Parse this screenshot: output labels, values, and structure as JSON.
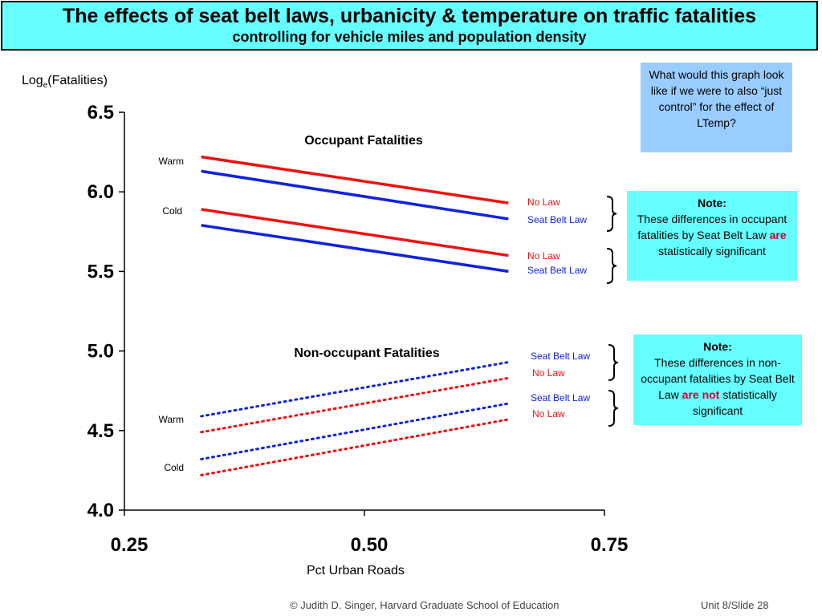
{
  "header": {
    "title": "The effects of seat belt laws, urbanicity & temperature on traffic fatalities",
    "subtitle": "controlling for vehicle miles and population density"
  },
  "axes": {
    "ylabel_base": "Log",
    "ylabel_sub": "e",
    "ylabel_rest": "(Fatalities)",
    "xlabel": "Pct Urban Roads"
  },
  "chart_data": {
    "type": "line",
    "xlabel": "Pct Urban Roads",
    "ylabel": "Loge(Fatalities)",
    "xlim": [
      0.25,
      0.75
    ],
    "ylim": [
      4.0,
      6.5
    ],
    "xticks": [
      "0.25",
      "0.50",
      "0.75"
    ],
    "yticks": [
      "4.0",
      "4.5",
      "5.0",
      "5.5",
      "6.0",
      "6.5"
    ],
    "groups": [
      {
        "title": "Occupant Fatalities",
        "side_labels": [
          "Warm",
          "Cold"
        ]
      },
      {
        "title": "Non-occupant Fatalities",
        "side_labels": [
          "Warm",
          "Cold"
        ]
      }
    ],
    "series": [
      {
        "name": "No Law",
        "group": "Occupant Fatalities",
        "temp": "Warm",
        "style": "solid",
        "color": "#ee1111",
        "x": [
          0.33,
          0.65
        ],
        "y": [
          6.22,
          5.93
        ],
        "label": "No Law"
      },
      {
        "name": "Seat Belt Law",
        "group": "Occupant Fatalities",
        "temp": "Warm",
        "style": "solid",
        "color": "#1122dd",
        "x": [
          0.33,
          0.65
        ],
        "y": [
          6.13,
          5.83
        ],
        "label": "Seat Belt Law"
      },
      {
        "name": "No Law",
        "group": "Occupant Fatalities",
        "temp": "Cold",
        "style": "solid",
        "color": "#ee1111",
        "x": [
          0.33,
          0.65
        ],
        "y": [
          5.89,
          5.6
        ],
        "label": "No Law"
      },
      {
        "name": "Seat Belt Law",
        "group": "Occupant Fatalities",
        "temp": "Cold",
        "style": "solid",
        "color": "#1122dd",
        "x": [
          0.33,
          0.65
        ],
        "y": [
          5.79,
          5.5
        ],
        "label": "Seat Belt Law"
      },
      {
        "name": "Seat Belt Law",
        "group": "Non-occupant Fatalities",
        "temp": "Warm",
        "style": "dotted",
        "color": "#1122dd",
        "x": [
          0.33,
          0.65
        ],
        "y": [
          4.59,
          4.93
        ],
        "label": "Seat Belt Law"
      },
      {
        "name": "No Law",
        "group": "Non-occupant Fatalities",
        "temp": "Warm",
        "style": "dotted",
        "color": "#ee1111",
        "x": [
          0.33,
          0.65
        ],
        "y": [
          4.49,
          4.83
        ],
        "label": "No Law"
      },
      {
        "name": "Seat Belt Law",
        "group": "Non-occupant Fatalities",
        "temp": "Cold",
        "style": "dotted",
        "color": "#1122dd",
        "x": [
          0.33,
          0.65
        ],
        "y": [
          4.32,
          4.67
        ],
        "label": "Seat Belt Law"
      },
      {
        "name": "No Law",
        "group": "Non-occupant Fatalities",
        "temp": "Cold",
        "style": "dotted",
        "color": "#ee1111",
        "x": [
          0.33,
          0.65
        ],
        "y": [
          4.22,
          4.57
        ],
        "label": "No Law"
      }
    ]
  },
  "question_box": {
    "text": "What would this graph look like if we were to also “just control” for the effect of LTemp?"
  },
  "note1": {
    "title": "Note:",
    "text_before": "These differences in occupant fatalities by Seat Belt Law ",
    "emphasis": "are",
    "text_after": " statistically significant"
  },
  "note2": {
    "title": "Note:",
    "text_before": "These differences in non-occupant fatalities by Seat Belt Law ",
    "emphasis": "are not",
    "text_after": " statistically significant"
  },
  "footer": {
    "credit": "© Judith D. Singer, Harvard Graduate School of Education",
    "slide": "Unit 8/Slide 28"
  },
  "colors": {
    "header_bg": "#66ffff",
    "question_bg": "#99ccff",
    "note_bg": "#66ffff",
    "red": "#ee1111",
    "blue": "#1122dd",
    "emphasis": "#cc0033"
  }
}
